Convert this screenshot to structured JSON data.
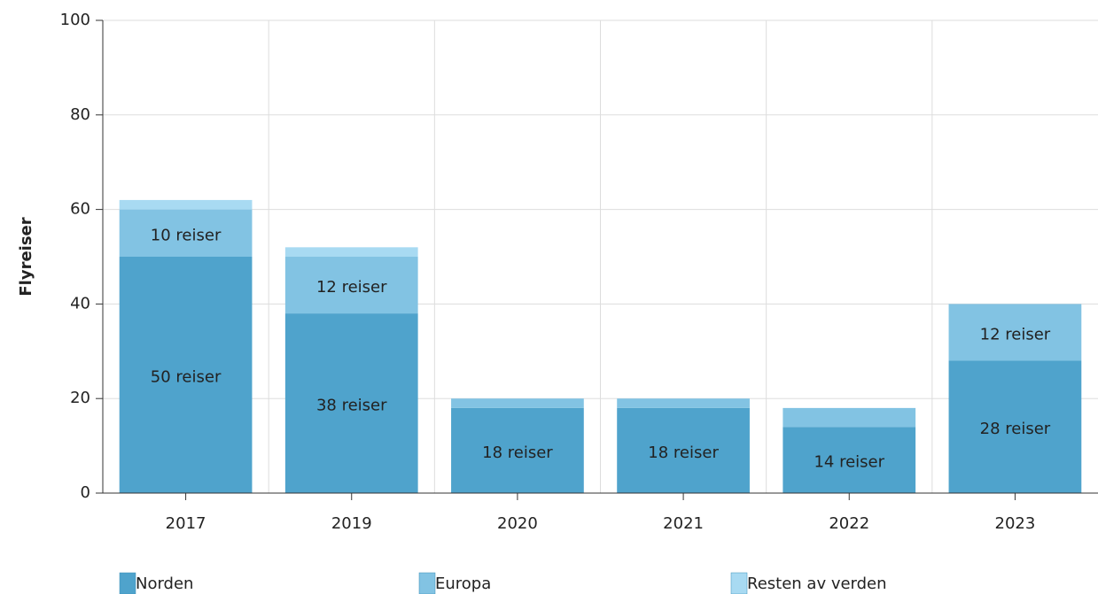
{
  "chart_data": {
    "type": "stacked_bar",
    "y_label": "Flyreiser",
    "categories": [
      "2017",
      "2019",
      "2020",
      "2021",
      "2022",
      "2023"
    ],
    "series": [
      {
        "name": "Norden",
        "color": "#4fa3cc",
        "values": [
          50,
          38,
          18,
          18,
          14,
          28
        ],
        "value_labels": [
          "50 reiser",
          "38 reiser",
          "18 reiser",
          "18 reiser",
          "14 reiser",
          "28 reiser"
        ]
      },
      {
        "name": "Europa",
        "color": "#82c3e3",
        "values": [
          10,
          12,
          2,
          2,
          4,
          12
        ],
        "value_labels": [
          "10 reiser",
          "12 reiser",
          null,
          null,
          null,
          "12 reiser"
        ]
      },
      {
        "name": "Resten av verden",
        "color": "#a8daf2",
        "values": [
          2,
          2,
          0,
          0,
          0,
          0
        ]
      }
    ],
    "ylim": [
      0,
      100
    ],
    "yticks": [
      0,
      20,
      40,
      60,
      80,
      100
    ],
    "grid": true
  }
}
